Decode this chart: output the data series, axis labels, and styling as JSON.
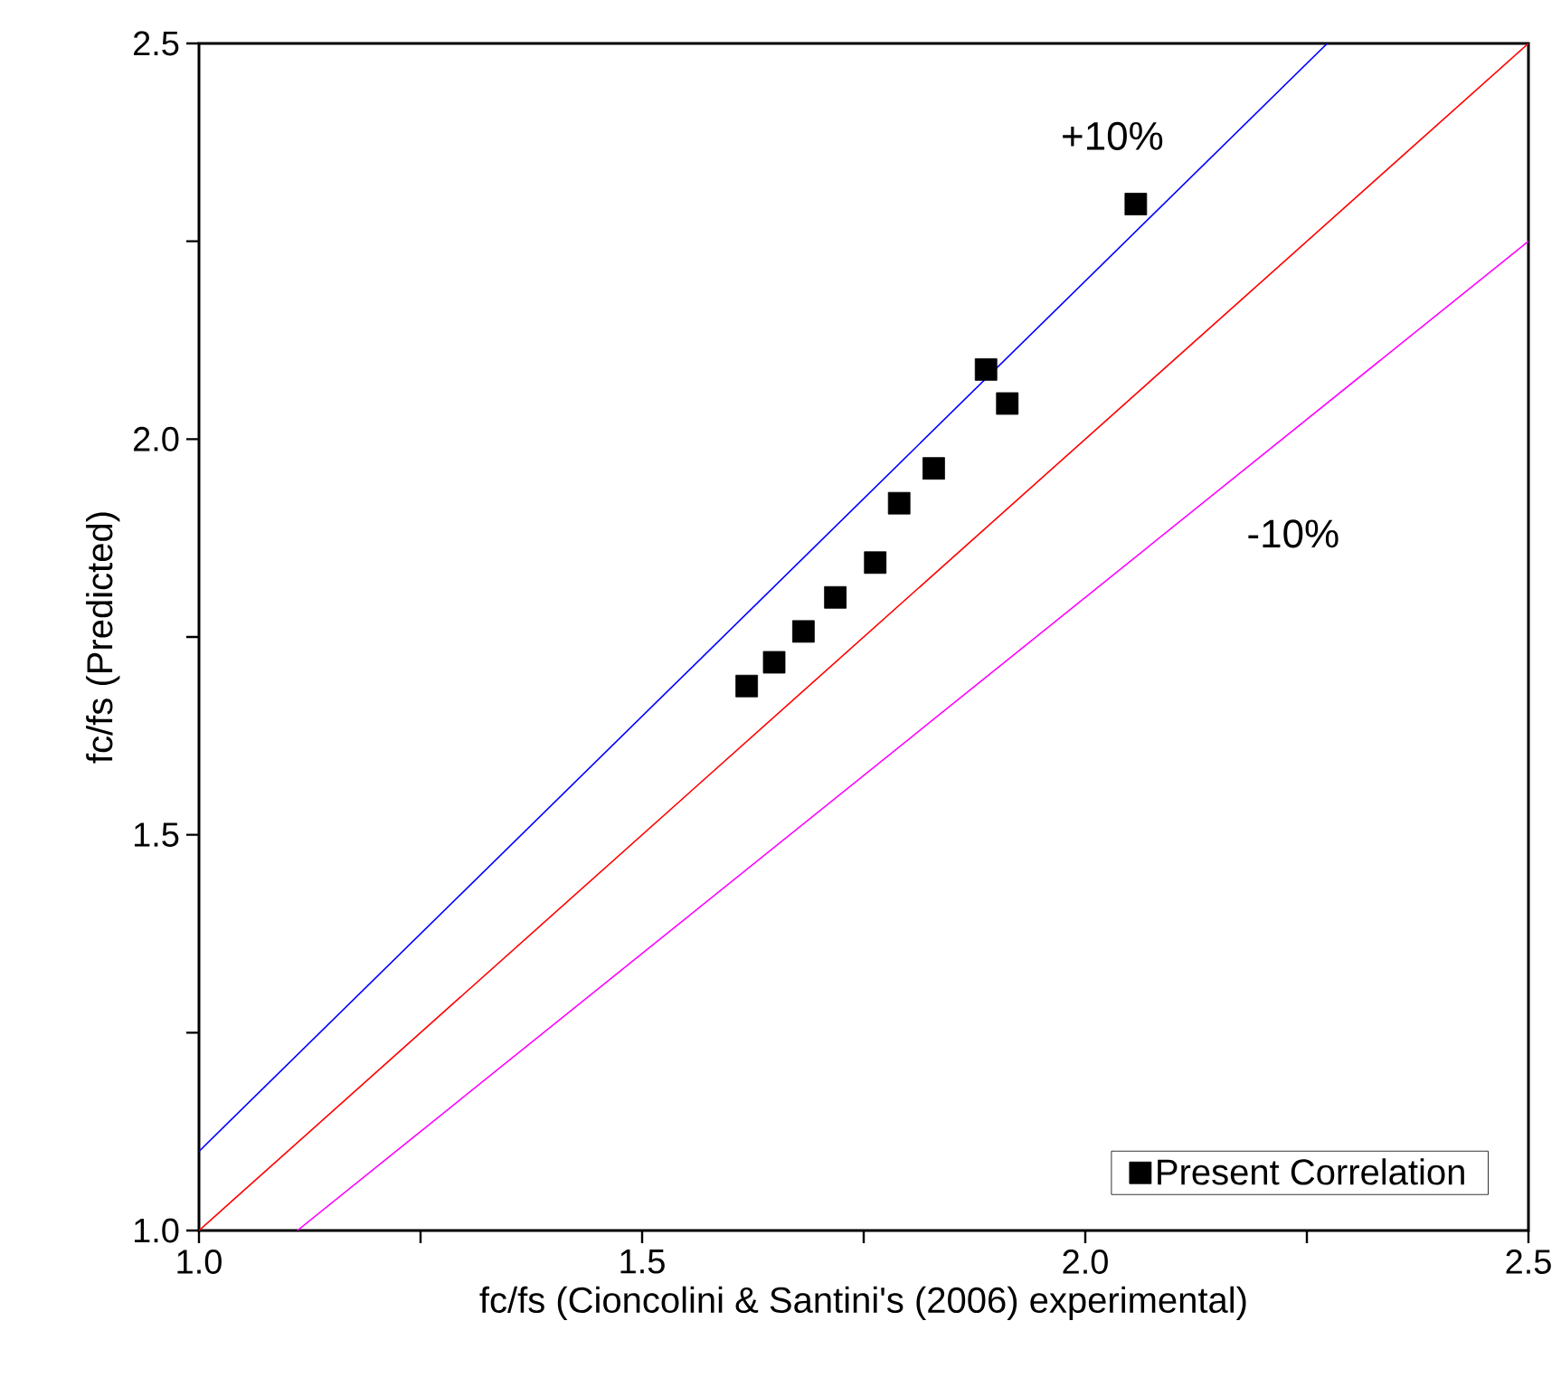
{
  "chart_data": {
    "type": "scatter",
    "xlabel": "fc/fs (Cioncolini & Santini's (2006) experimental)",
    "ylabel": "fc/fs (Predicted)",
    "xlim": [
      1.0,
      2.5
    ],
    "ylim": [
      1.0,
      2.5
    ],
    "xticks": [
      {
        "value": 1.0,
        "label": "1.0"
      },
      {
        "value": 1.25,
        "label": null
      },
      {
        "value": 1.5,
        "label": "1.5"
      },
      {
        "value": 1.75,
        "label": null
      },
      {
        "value": 2.0,
        "label": "2.0"
      },
      {
        "value": 2.25,
        "label": null
      },
      {
        "value": 2.5,
        "label": "2.5"
      }
    ],
    "yticks": [
      {
        "value": 1.0,
        "label": "1.0"
      },
      {
        "value": 1.25,
        "label": null
      },
      {
        "value": 1.5,
        "label": "1.5"
      },
      {
        "value": 1.75,
        "label": null
      },
      {
        "value": 2.0,
        "label": "2.0"
      },
      {
        "value": 2.25,
        "label": null
      },
      {
        "value": 2.5,
        "label": "2.5"
      }
    ],
    "legend": "bottom right",
    "grid": false,
    "series": [
      {
        "name": "Present Correlation",
        "marker": "square",
        "color": "#000000",
        "x": [
          1.618,
          1.649,
          1.682,
          1.718,
          1.763,
          1.79,
          1.829,
          1.888,
          1.912,
          2.057
        ],
        "values": [
          1.688,
          1.718,
          1.757,
          1.8,
          1.844,
          1.919,
          1.963,
          2.088,
          2.045,
          2.297
        ]
      },
      {
        "type": "line",
        "marker": "none",
        "color": "#0000ff",
        "x": [
          1.0,
          2.273
        ],
        "values": [
          1.1,
          2.5
        ]
      },
      {
        "type": "line",
        "marker": "none",
        "color": "#ff0000",
        "x": [
          1.0,
          2.5
        ],
        "values": [
          1.0,
          2.5
        ]
      },
      {
        "type": "line",
        "marker": "none",
        "color": "#ff00ff",
        "x": [
          1.111,
          2.5
        ],
        "values": [
          1.0,
          2.25
        ]
      }
    ],
    "annotations": [
      "+10%",
      "-10%"
    ]
  }
}
